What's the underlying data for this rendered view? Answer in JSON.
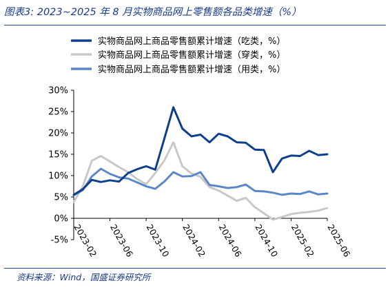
{
  "title": "图表3:  2023~2025 年 8 月实物商品网上零售额各品类增速（%）",
  "source": "资料来源：Wind，国盛证券研究所",
  "chart_data": {
    "type": "line",
    "ylim": [
      -5,
      30
    ],
    "yticks": [
      "30%",
      "25%",
      "20%",
      "15%",
      "10%",
      "5%",
      "0%",
      "-5%"
    ],
    "ytick_values": [
      30,
      25,
      20,
      15,
      10,
      5,
      0,
      -5
    ],
    "x": [
      "2023-02",
      "2023-03",
      "2023-04",
      "2023-05",
      "2023-06",
      "2023-07",
      "2023-08",
      "2023-09",
      "2023-10",
      "2023-11",
      "2023-12",
      "2024-02",
      "2024-03",
      "2024-04",
      "2024-05",
      "2024-06",
      "2024-07",
      "2024-08",
      "2024-09",
      "2024-10",
      "2024-11",
      "2024-12",
      "2025-02",
      "2025-03",
      "2025-04",
      "2025-05",
      "2025-06",
      "2025-07",
      "2025-08"
    ],
    "xtick_labels": [
      "2023-02",
      "2023-06",
      "2023-10",
      "2024-02",
      "2024-06",
      "2024-10",
      "2025-02",
      "2025-06"
    ],
    "xtick_indices": [
      0,
      4,
      8,
      12,
      16,
      20,
      24,
      28
    ],
    "series": [
      {
        "name": "实物商品网上商品零售额累计增速（吃类，%）",
        "color": "#0d3f8f",
        "width": 3,
        "values": [
          5.5,
          6.8,
          9.0,
          8.5,
          8.9,
          8.6,
          10.6,
          11.5,
          12.2,
          11.4,
          18.6,
          26.0,
          21.0,
          19.2,
          19.6,
          17.8,
          19.8,
          19.2,
          17.8,
          17.7,
          16.1,
          16.0,
          10.8,
          14.0,
          14.7,
          14.6,
          15.8,
          14.8,
          15.0
        ]
      },
      {
        "name": "实物商品网上商品零售额累计增速（穿类，%）",
        "color": "#c8c8c8",
        "width": 3,
        "values": [
          3.8,
          7.5,
          13.5,
          14.6,
          13.3,
          12.0,
          10.8,
          9.2,
          8.0,
          10.6,
          13.5,
          17.8,
          12.2,
          10.5,
          9.7,
          7.3,
          6.5,
          5.3,
          4.1,
          4.8,
          2.6,
          1.2,
          -0.3,
          0.3,
          1.0,
          1.3,
          1.5,
          1.8,
          2.4
        ]
      },
      {
        "name": "实物商品网上商品零售额累计增速（用类，%）",
        "color": "#5b87c8",
        "width": 3,
        "values": [
          5.4,
          6.6,
          9.8,
          11.6,
          10.4,
          9.6,
          9.3,
          8.4,
          7.5,
          6.9,
          8.6,
          10.8,
          9.8,
          9.9,
          10.8,
          7.8,
          7.5,
          7.1,
          7.3,
          7.9,
          6.4,
          6.3,
          6.0,
          5.5,
          5.8,
          5.7,
          6.3,
          5.6,
          5.8
        ]
      }
    ]
  }
}
